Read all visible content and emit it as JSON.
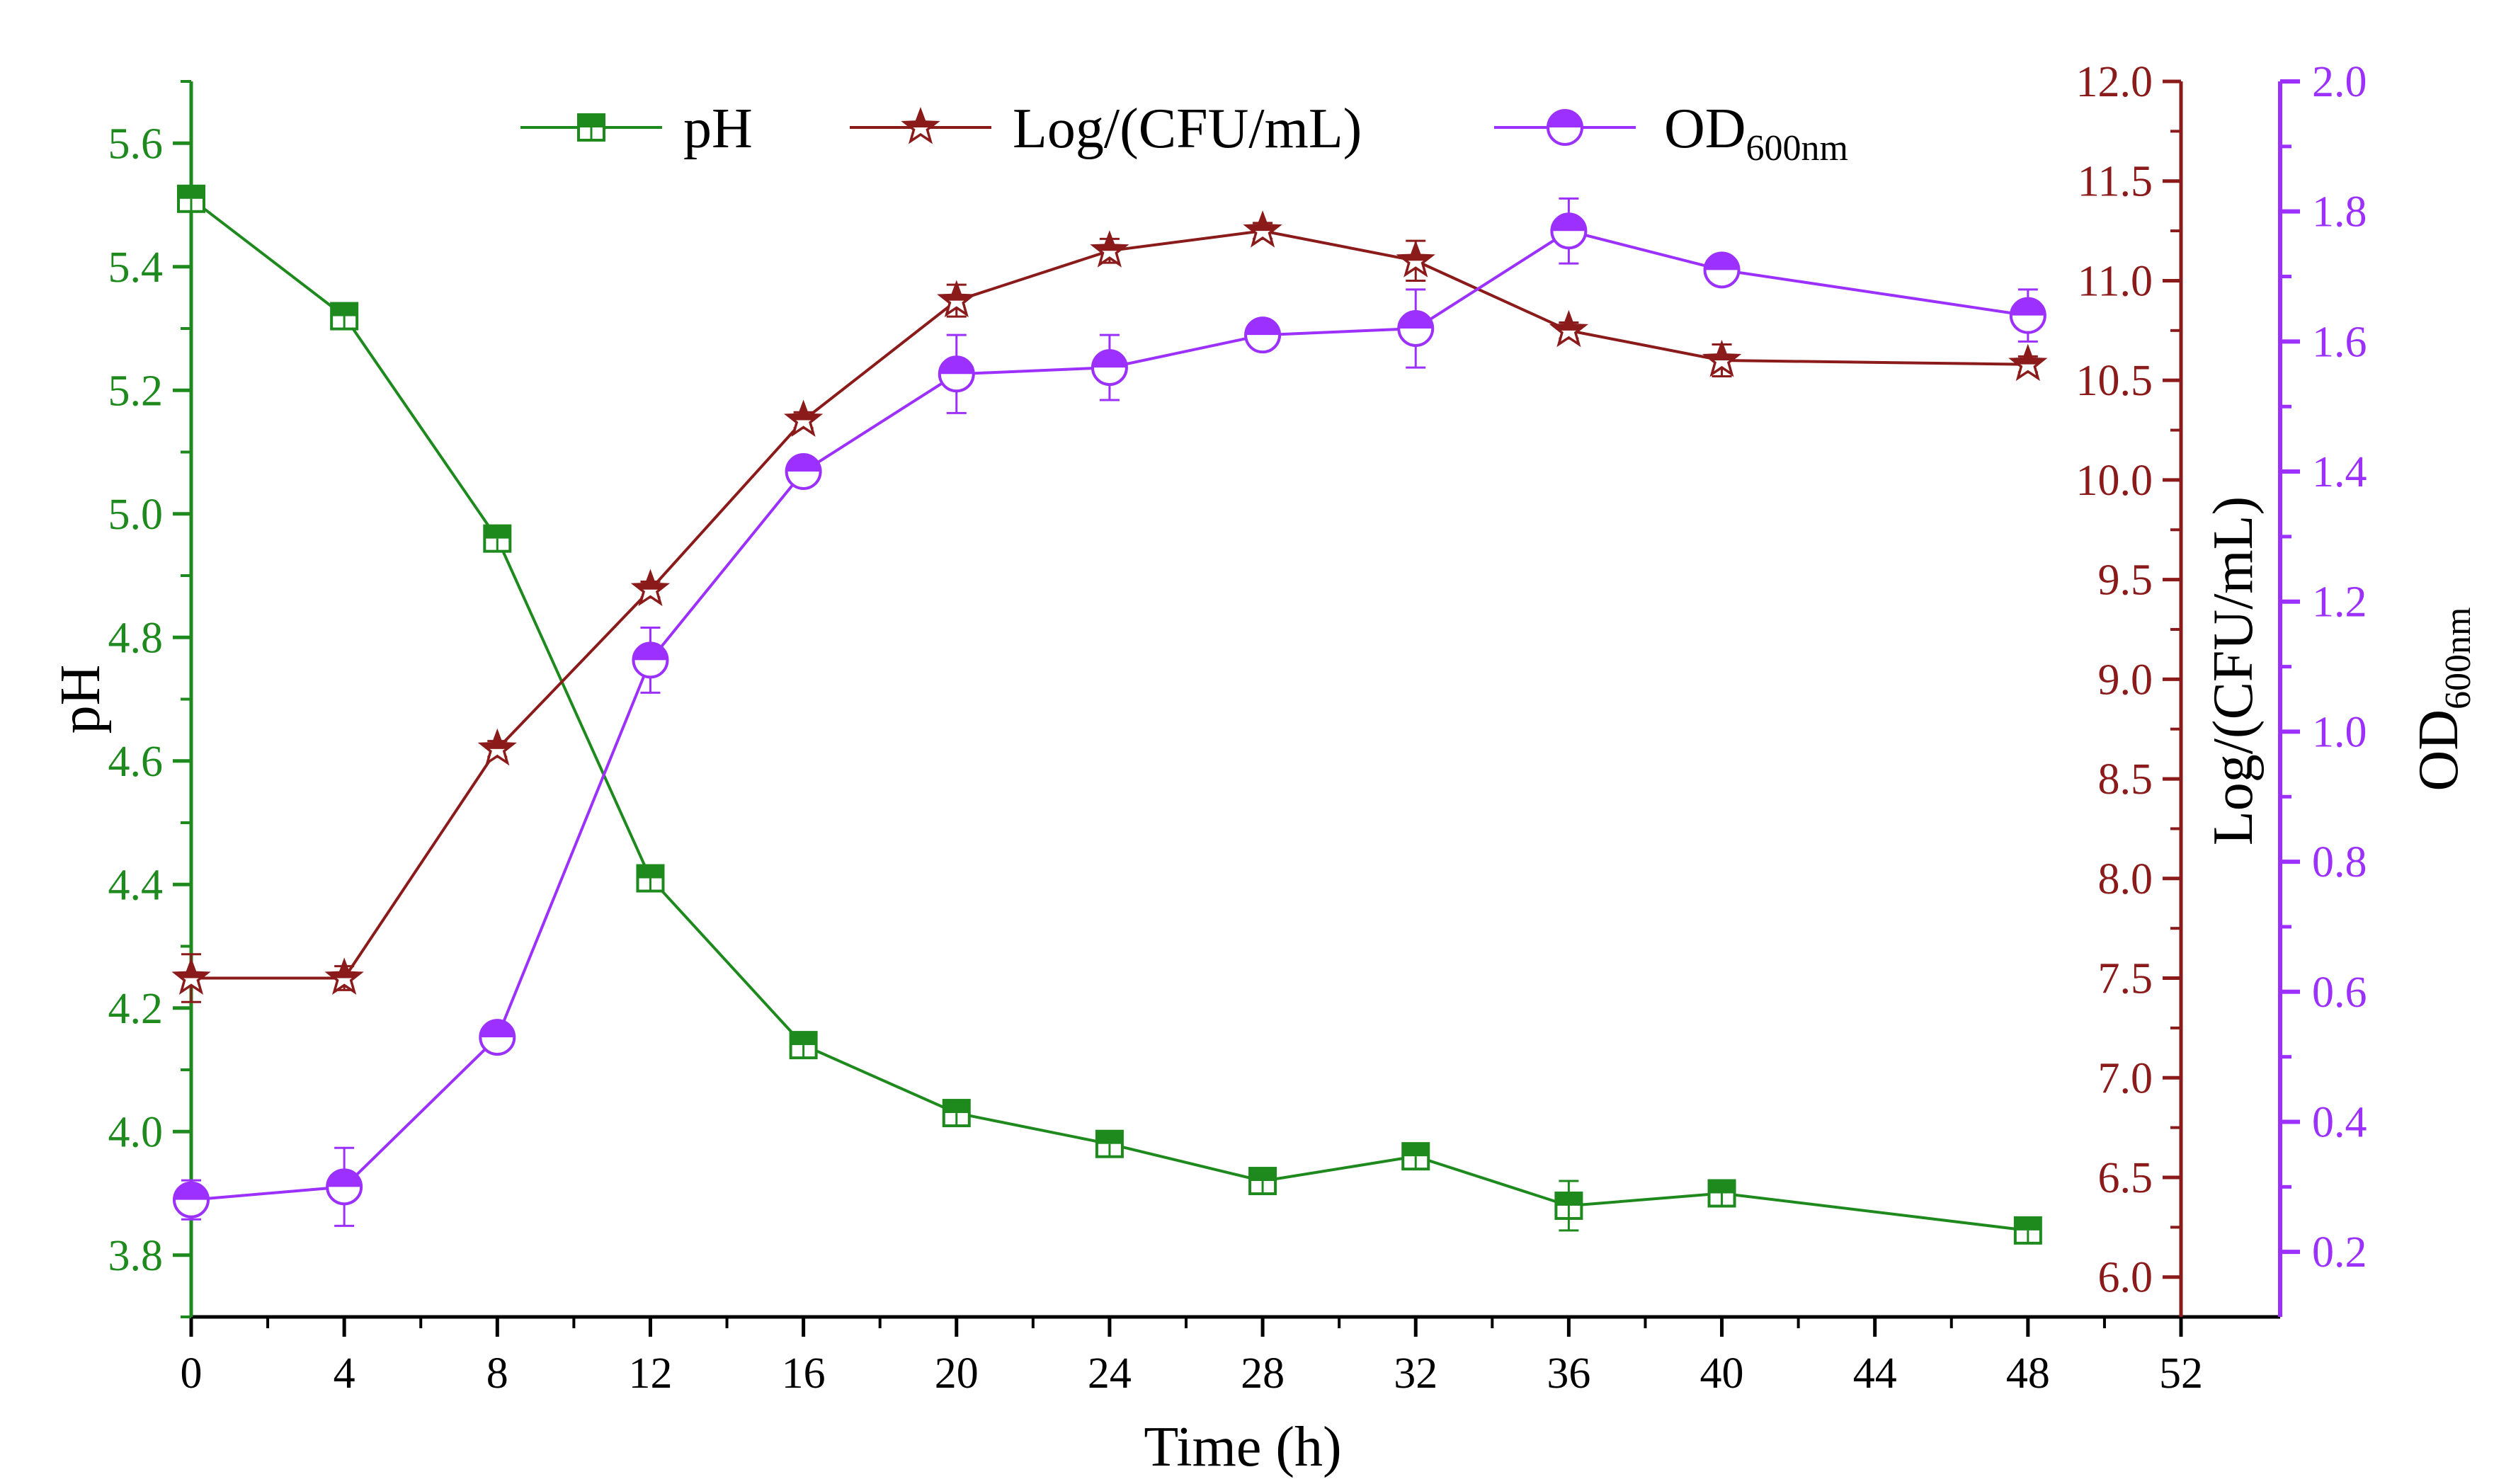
{
  "chart_data": {
    "type": "line",
    "title": "",
    "xlabel": "Time (h)",
    "x_ticks": [
      0,
      4,
      8,
      12,
      16,
      20,
      24,
      28,
      32,
      36,
      40,
      44,
      48,
      52
    ],
    "xlim": [
      0,
      52
    ],
    "axes": {
      "ph": {
        "label": "pH",
        "ylim": [
          3.7,
          5.7
        ],
        "ticks": [
          "3.8",
          "4.0",
          "4.2",
          "4.4",
          "4.6",
          "4.8",
          "5.0",
          "5.2",
          "5.4",
          "5.6"
        ],
        "color": "#1e8a1e"
      },
      "log": {
        "label": "Log/(CFU/mL)",
        "ylim": [
          5.8,
          12.0
        ],
        "ticks": [
          "6.0",
          "6.5",
          "7.0",
          "7.5",
          "8.0",
          "8.5",
          "9.0",
          "9.5",
          "10.0",
          "10.5",
          "11.0",
          "11.5",
          "12.0"
        ],
        "color": "#8b1a1a"
      },
      "od": {
        "label_main": "OD",
        "label_sub": "600nm",
        "ylim": [
          0.1,
          2.0
        ],
        "ticks": [
          "0.2",
          "0.4",
          "0.6",
          "0.8",
          "1.0",
          "1.2",
          "1.4",
          "1.6",
          "1.8",
          "2.0"
        ],
        "color": "#9b30ff"
      }
    },
    "x": [
      0,
      4,
      8,
      12,
      16,
      20,
      24,
      28,
      32,
      36,
      40,
      48
    ],
    "series": [
      {
        "name": "pH",
        "axis": "ph",
        "marker": "square",
        "values": [
          5.51,
          5.32,
          4.96,
          4.41,
          4.14,
          4.03,
          3.98,
          3.92,
          3.96,
          3.88,
          3.9,
          3.84
        ],
        "errors": [
          0.01,
          0.01,
          0.01,
          0.01,
          0.01,
          0.01,
          0.01,
          0.01,
          0.01,
          0.04,
          0.01,
          0.01
        ]
      },
      {
        "name": "Log/(CFU/mL)",
        "axis": "log",
        "marker": "star",
        "values": [
          7.5,
          7.5,
          8.65,
          9.45,
          10.3,
          10.9,
          11.15,
          11.25,
          11.1,
          10.75,
          10.6,
          10.58
        ],
        "errors": [
          0.12,
          0.06,
          0.04,
          0.04,
          0.04,
          0.08,
          0.06,
          0.04,
          0.1,
          0.04,
          0.08,
          0.04
        ]
      },
      {
        "name": "OD",
        "name_sub": "600nm",
        "axis": "od",
        "marker": "half-circle",
        "values": [
          0.28,
          0.3,
          0.53,
          1.11,
          1.4,
          1.55,
          1.56,
          1.61,
          1.62,
          1.77,
          1.71,
          1.64
        ],
        "errors": [
          0.03,
          0.06,
          0.0,
          0.05,
          0.01,
          0.06,
          0.05,
          0.01,
          0.06,
          0.05,
          0.01,
          0.04
        ]
      }
    ],
    "legend": {
      "placement": "top-center",
      "items": [
        {
          "series": "pH",
          "label": "pH"
        },
        {
          "series": "Log/(CFU/mL)",
          "label": "Log/(CFU/mL)"
        },
        {
          "series": "OD",
          "label": "OD",
          "sub": "600nm"
        }
      ]
    }
  }
}
